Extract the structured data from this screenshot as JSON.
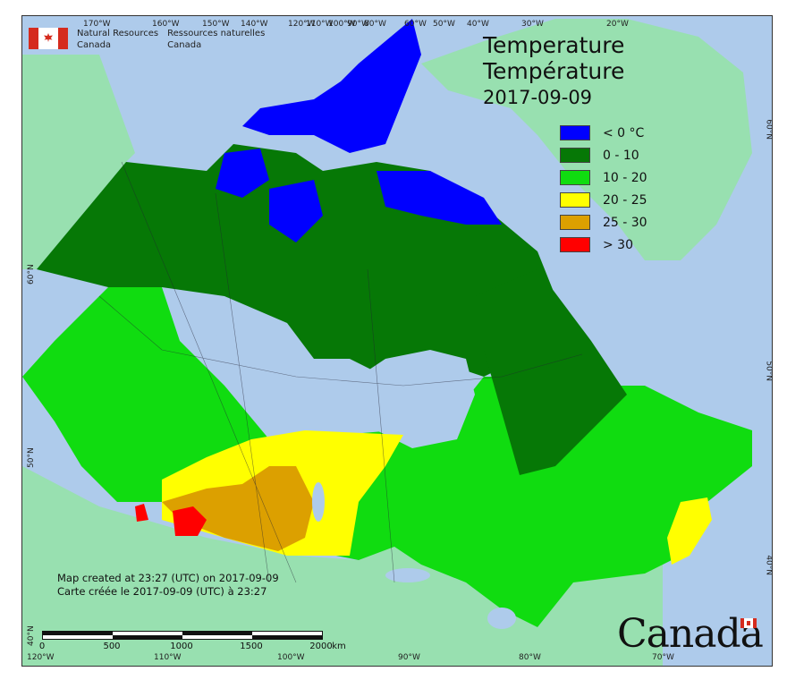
{
  "agency": {
    "name_en_1": "Natural Resources",
    "name_en_2": "Canada",
    "name_fr_1": "Ressources naturelles",
    "name_fr_2": "Canada"
  },
  "title": {
    "line1": "Temperature",
    "line2": "Température",
    "date": "2017-09-09"
  },
  "legend": [
    {
      "label": "< 0 °C",
      "color": "#0000ff"
    },
    {
      "label": "0 - 10",
      "color": "#067806"
    },
    {
      "label": "10 - 20",
      "color": "#10dc10"
    },
    {
      "label": "20 - 25",
      "color": "#ffff00"
    },
    {
      "label": "25 - 30",
      "color": "#dca000"
    },
    {
      "label": "> 30",
      "color": "#ff0000"
    }
  ],
  "credits": {
    "line1": "Map created at 23:27 (UTC) on 2017-09-09",
    "line2": "Carte créée le 2017-09-09 (UTC) à 23:27"
  },
  "scale": {
    "labels": [
      "0",
      "500",
      "1000",
      "1500",
      "2000"
    ],
    "unit": "km"
  },
  "wordmark": "Canada",
  "graticule": {
    "top": [
      "170°W",
      "160°W",
      "150°W",
      "140°W",
      "120°W",
      "110°W",
      "100°W",
      "90°W",
      "80°W",
      "60°W",
      "50°W",
      "40°W",
      "30°W",
      "20°W"
    ],
    "bottom": [
      "120°W",
      "110°W",
      "100°W",
      "90°W",
      "80°W",
      "70°W"
    ],
    "left": [
      "60°N",
      "50°N",
      "40°N"
    ],
    "right": [
      "60°N",
      "50°N",
      "40°N"
    ]
  },
  "colors": {
    "water": "#aecbeb",
    "foreign_land": "#98e0b0",
    "greenland": "#98e0b0"
  }
}
